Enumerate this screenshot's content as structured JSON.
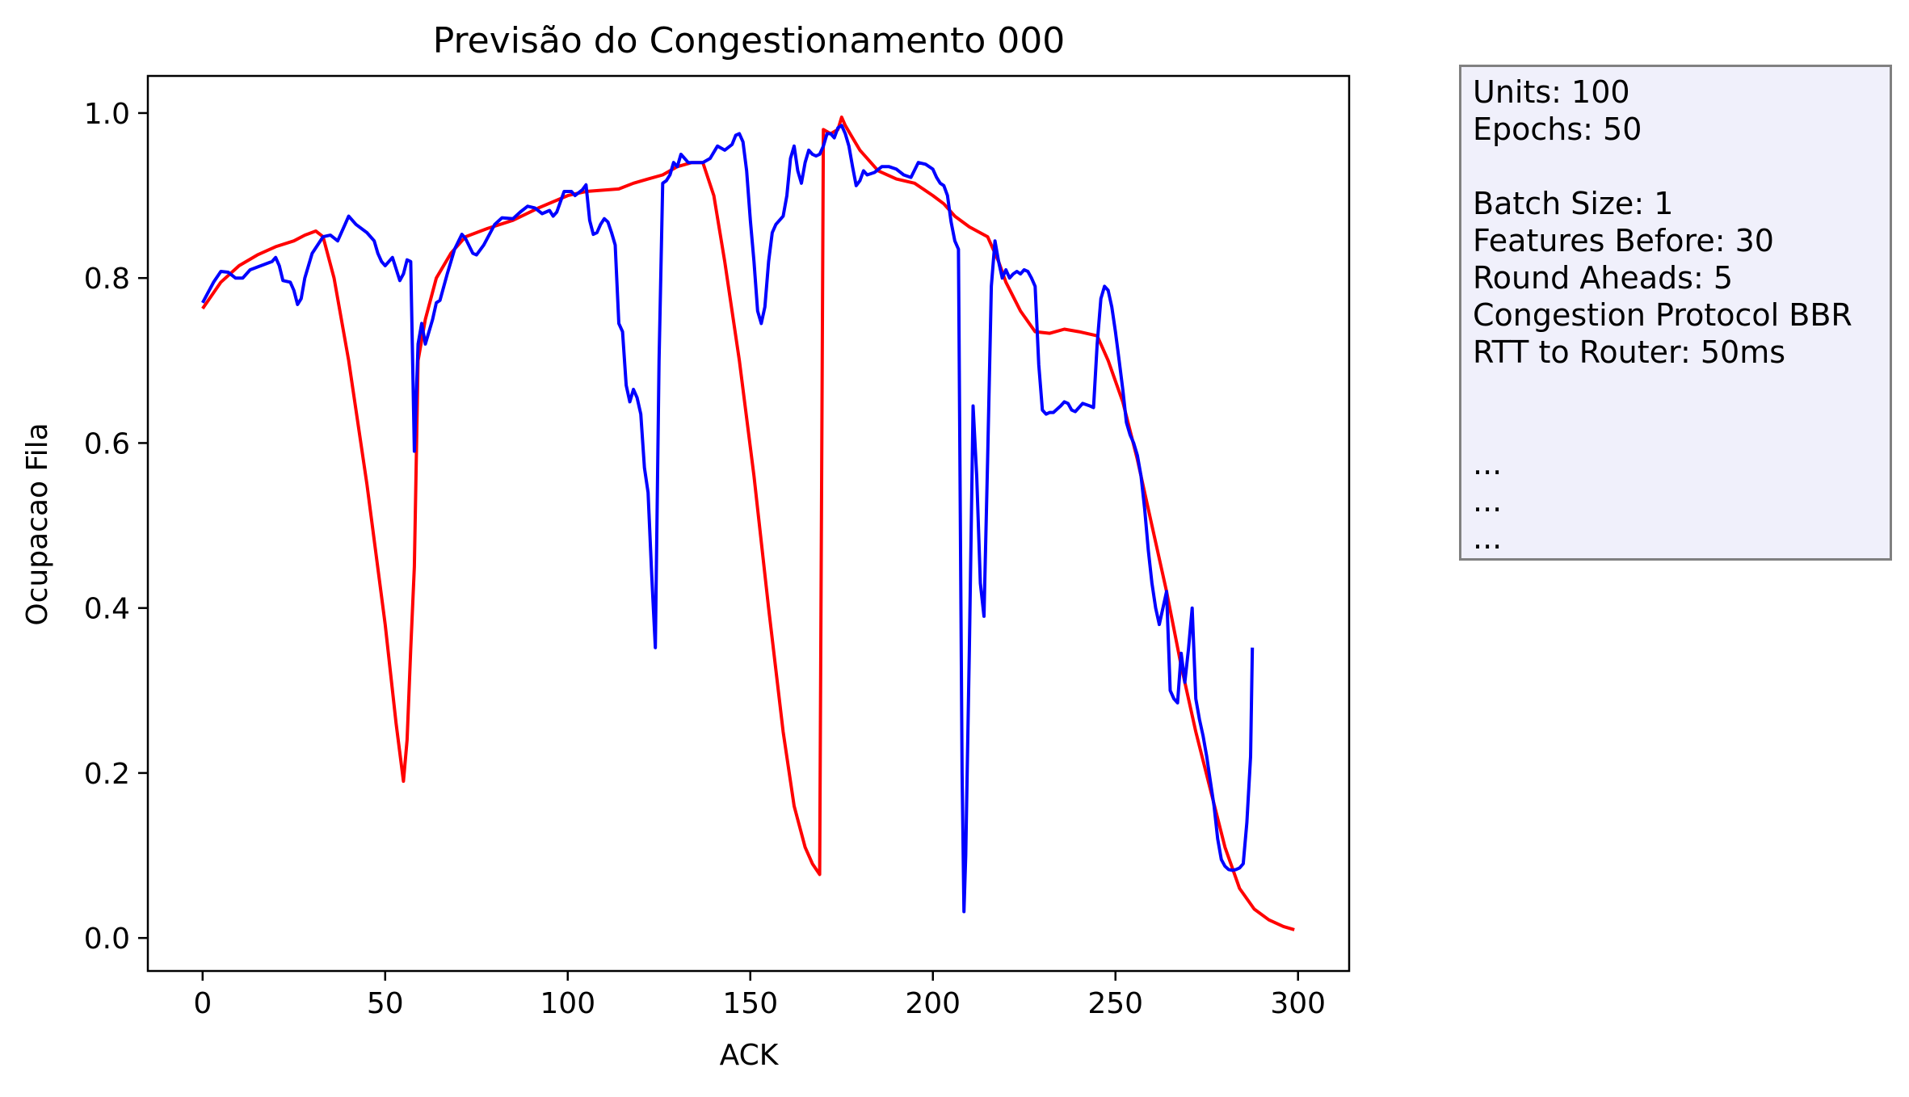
{
  "chart_data": {
    "type": "line",
    "title": "Previsão do Congestionamento 000",
    "xlabel": "ACK",
    "ylabel": "Ocupacao Fila",
    "xlim": [
      -15,
      314
    ],
    "ylim": [
      -0.04,
      1.045
    ],
    "x_ticks": [
      0,
      50,
      100,
      150,
      200,
      250,
      300
    ],
    "x_tick_labels": [
      "0",
      "50",
      "100",
      "150",
      "200",
      "250",
      "300"
    ],
    "y_ticks": [
      0.0,
      0.2,
      0.4,
      0.6,
      0.8,
      1.0
    ],
    "y_tick_labels": [
      "0.0",
      "0.2",
      "0.4",
      "0.6",
      "0.8",
      "1.0"
    ],
    "grid": false,
    "series": [
      {
        "color": "#ff0000",
        "points": [
          [
            0,
            0.763
          ],
          [
            5,
            0.795
          ],
          [
            10,
            0.815
          ],
          [
            15,
            0.828
          ],
          [
            20,
            0.838
          ],
          [
            25,
            0.845
          ],
          [
            28,
            0.852
          ],
          [
            31,
            0.857
          ],
          [
            33,
            0.85
          ],
          [
            36,
            0.8
          ],
          [
            40,
            0.7
          ],
          [
            45,
            0.55
          ],
          [
            50,
            0.38
          ],
          [
            53,
            0.26
          ],
          [
            55,
            0.19
          ],
          [
            56,
            0.24
          ],
          [
            57,
            0.35
          ],
          [
            58,
            0.45
          ],
          [
            59,
            0.7
          ],
          [
            61,
            0.75
          ],
          [
            64,
            0.8
          ],
          [
            68,
            0.83
          ],
          [
            72,
            0.85
          ],
          [
            78,
            0.86
          ],
          [
            85,
            0.87
          ],
          [
            92,
            0.885
          ],
          [
            100,
            0.9
          ],
          [
            105,
            0.905
          ],
          [
            114,
            0.908
          ],
          [
            118,
            0.915
          ],
          [
            122,
            0.92
          ],
          [
            126,
            0.925
          ],
          [
            130,
            0.935
          ],
          [
            134,
            0.94
          ],
          [
            137,
            0.94
          ],
          [
            140,
            0.9
          ],
          [
            143,
            0.82
          ],
          [
            147,
            0.7
          ],
          [
            151,
            0.56
          ],
          [
            155,
            0.4
          ],
          [
            159,
            0.25
          ],
          [
            162,
            0.16
          ],
          [
            165,
            0.11
          ],
          [
            167,
            0.09
          ],
          [
            169,
            0.077
          ],
          [
            170,
            0.98
          ],
          [
            172,
            0.975
          ],
          [
            174,
            0.98
          ],
          [
            175,
            0.995
          ],
          [
            176,
            0.985
          ],
          [
            178,
            0.97
          ],
          [
            180,
            0.955
          ],
          [
            182,
            0.945
          ],
          [
            185,
            0.93
          ],
          [
            190,
            0.92
          ],
          [
            195,
            0.915
          ],
          [
            200,
            0.9
          ],
          [
            203,
            0.89
          ],
          [
            206,
            0.875
          ],
          [
            210,
            0.862
          ],
          [
            215,
            0.85
          ],
          [
            218,
            0.82
          ],
          [
            220,
            0.795
          ],
          [
            224,
            0.76
          ],
          [
            228,
            0.735
          ],
          [
            232,
            0.733
          ],
          [
            236,
            0.738
          ],
          [
            240,
            0.735
          ],
          [
            245,
            0.73
          ],
          [
            248,
            0.7
          ],
          [
            252,
            0.65
          ],
          [
            256,
            0.58
          ],
          [
            260,
            0.5
          ],
          [
            264,
            0.42
          ],
          [
            268,
            0.33
          ],
          [
            272,
            0.25
          ],
          [
            276,
            0.18
          ],
          [
            280,
            0.11
          ],
          [
            284,
            0.06
          ],
          [
            288,
            0.035
          ],
          [
            292,
            0.022
          ],
          [
            296,
            0.014
          ],
          [
            299,
            0.01
          ]
        ]
      },
      {
        "color": "#0000ff",
        "points": [
          [
            0,
            0.77
          ],
          [
            3,
            0.795
          ],
          [
            5,
            0.808
          ],
          [
            7,
            0.807
          ],
          [
            9,
            0.8
          ],
          [
            11,
            0.8
          ],
          [
            13,
            0.81
          ],
          [
            16,
            0.815
          ],
          [
            19,
            0.82
          ],
          [
            20,
            0.825
          ],
          [
            21,
            0.815
          ],
          [
            22,
            0.797
          ],
          [
            24,
            0.795
          ],
          [
            25,
            0.785
          ],
          [
            26,
            0.768
          ],
          [
            27,
            0.775
          ],
          [
            28,
            0.8
          ],
          [
            30,
            0.83
          ],
          [
            33,
            0.85
          ],
          [
            35,
            0.852
          ],
          [
            37,
            0.845
          ],
          [
            39,
            0.865
          ],
          [
            40,
            0.875
          ],
          [
            42,
            0.865
          ],
          [
            45,
            0.855
          ],
          [
            47,
            0.845
          ],
          [
            48,
            0.83
          ],
          [
            49,
            0.82
          ],
          [
            50,
            0.815
          ],
          [
            52,
            0.825
          ],
          [
            54,
            0.797
          ],
          [
            55,
            0.805
          ],
          [
            56,
            0.822
          ],
          [
            57,
            0.82
          ],
          [
            58,
            0.59
          ],
          [
            59,
            0.72
          ],
          [
            60,
            0.745
          ],
          [
            61,
            0.72
          ],
          [
            63,
            0.75
          ],
          [
            64,
            0.77
          ],
          [
            65,
            0.773
          ],
          [
            67,
            0.805
          ],
          [
            69,
            0.835
          ],
          [
            71,
            0.853
          ],
          [
            72,
            0.848
          ],
          [
            74,
            0.83
          ],
          [
            75,
            0.828
          ],
          [
            77,
            0.84
          ],
          [
            80,
            0.865
          ],
          [
            82,
            0.873
          ],
          [
            85,
            0.872
          ],
          [
            87,
            0.88
          ],
          [
            89,
            0.887
          ],
          [
            91,
            0.885
          ],
          [
            93,
            0.878
          ],
          [
            95,
            0.882
          ],
          [
            96,
            0.875
          ],
          [
            97,
            0.88
          ],
          [
            99,
            0.905
          ],
          [
            101,
            0.905
          ],
          [
            102,
            0.9
          ],
          [
            104,
            0.907
          ],
          [
            105,
            0.913
          ],
          [
            106,
            0.87
          ],
          [
            107,
            0.853
          ],
          [
            108,
            0.855
          ],
          [
            109,
            0.865
          ],
          [
            110,
            0.872
          ],
          [
            111,
            0.868
          ],
          [
            112,
            0.855
          ],
          [
            113,
            0.84
          ],
          [
            114,
            0.745
          ],
          [
            115,
            0.735
          ],
          [
            116,
            0.67
          ],
          [
            117,
            0.65
          ],
          [
            118,
            0.665
          ],
          [
            119,
            0.655
          ],
          [
            120,
            0.635
          ],
          [
            121,
            0.57
          ],
          [
            122,
            0.54
          ],
          [
            123,
            0.44
          ],
          [
            124,
            0.352
          ],
          [
            125,
            0.7
          ],
          [
            126,
            0.915
          ],
          [
            127,
            0.918
          ],
          [
            128,
            0.925
          ],
          [
            129,
            0.94
          ],
          [
            130,
            0.935
          ],
          [
            131,
            0.95
          ],
          [
            132,
            0.945
          ],
          [
            133,
            0.94
          ],
          [
            135,
            0.94
          ],
          [
            137,
            0.94
          ],
          [
            139,
            0.945
          ],
          [
            141,
            0.96
          ],
          [
            143,
            0.955
          ],
          [
            145,
            0.962
          ],
          [
            146,
            0.973
          ],
          [
            147,
            0.975
          ],
          [
            148,
            0.965
          ],
          [
            149,
            0.93
          ],
          [
            150,
            0.87
          ],
          [
            151,
            0.82
          ],
          [
            152,
            0.76
          ],
          [
            153,
            0.745
          ],
          [
            154,
            0.765
          ],
          [
            155,
            0.82
          ],
          [
            156,
            0.855
          ],
          [
            157,
            0.865
          ],
          [
            158,
            0.87
          ],
          [
            159,
            0.875
          ],
          [
            160,
            0.9
          ],
          [
            161,
            0.945
          ],
          [
            162,
            0.96
          ],
          [
            163,
            0.93
          ],
          [
            164,
            0.915
          ],
          [
            165,
            0.94
          ],
          [
            166,
            0.955
          ],
          [
            167,
            0.95
          ],
          [
            168,
            0.948
          ],
          [
            169,
            0.95
          ],
          [
            170,
            0.96
          ],
          [
            171,
            0.975
          ],
          [
            172,
            0.975
          ],
          [
            173,
            0.97
          ],
          [
            174,
            0.982
          ],
          [
            175,
            0.985
          ],
          [
            176,
            0.975
          ],
          [
            177,
            0.96
          ],
          [
            178,
            0.935
          ],
          [
            179,
            0.912
          ],
          [
            180,
            0.918
          ],
          [
            181,
            0.93
          ],
          [
            182,
            0.925
          ],
          [
            184,
            0.928
          ],
          [
            186,
            0.935
          ],
          [
            188,
            0.935
          ],
          [
            190,
            0.932
          ],
          [
            192,
            0.925
          ],
          [
            194,
            0.922
          ],
          [
            196,
            0.94
          ],
          [
            198,
            0.938
          ],
          [
            200,
            0.932
          ],
          [
            201,
            0.922
          ],
          [
            202,
            0.915
          ],
          [
            203,
            0.912
          ],
          [
            204,
            0.9
          ],
          [
            205,
            0.868
          ],
          [
            206,
            0.845
          ],
          [
            207,
            0.835
          ],
          [
            208,
            0.2
          ],
          [
            208.5,
            0.032
          ],
          [
            209,
            0.1
          ],
          [
            210,
            0.35
          ],
          [
            211,
            0.645
          ],
          [
            212,
            0.56
          ],
          [
            213,
            0.43
          ],
          [
            214,
            0.39
          ],
          [
            215,
            0.58
          ],
          [
            216,
            0.79
          ],
          [
            217,
            0.845
          ],
          [
            218,
            0.82
          ],
          [
            219,
            0.8
          ],
          [
            220,
            0.81
          ],
          [
            221,
            0.8
          ],
          [
            222,
            0.805
          ],
          [
            223,
            0.808
          ],
          [
            224,
            0.805
          ],
          [
            225,
            0.81
          ],
          [
            226,
            0.808
          ],
          [
            227,
            0.8
          ],
          [
            228,
            0.79
          ],
          [
            229,
            0.695
          ],
          [
            230,
            0.64
          ],
          [
            231,
            0.635
          ],
          [
            232,
            0.637
          ],
          [
            233,
            0.637
          ],
          [
            235,
            0.645
          ],
          [
            236,
            0.65
          ],
          [
            237,
            0.648
          ],
          [
            238,
            0.64
          ],
          [
            239,
            0.638
          ],
          [
            241,
            0.648
          ],
          [
            243,
            0.645
          ],
          [
            244,
            0.643
          ],
          [
            245,
            0.72
          ],
          [
            246,
            0.775
          ],
          [
            247,
            0.79
          ],
          [
            248,
            0.785
          ],
          [
            249,
            0.765
          ],
          [
            250,
            0.735
          ],
          [
            251,
            0.7
          ],
          [
            252,
            0.665
          ],
          [
            253,
            0.625
          ],
          [
            254,
            0.61
          ],
          [
            255,
            0.6
          ],
          [
            256,
            0.585
          ],
          [
            257,
            0.56
          ],
          [
            258,
            0.52
          ],
          [
            259,
            0.47
          ],
          [
            260,
            0.43
          ],
          [
            261,
            0.4
          ],
          [
            262,
            0.38
          ],
          [
            263,
            0.4
          ],
          [
            264,
            0.42
          ],
          [
            265,
            0.3
          ],
          [
            266,
            0.29
          ],
          [
            267,
            0.285
          ],
          [
            268,
            0.345
          ],
          [
            269,
            0.31
          ],
          [
            270,
            0.35
          ],
          [
            271,
            0.4
          ],
          [
            272,
            0.29
          ],
          [
            273,
            0.265
          ],
          [
            274,
            0.245
          ],
          [
            275,
            0.22
          ],
          [
            276,
            0.19
          ],
          [
            277,
            0.16
          ],
          [
            278,
            0.12
          ],
          [
            279,
            0.095
          ],
          [
            280,
            0.087
          ],
          [
            281,
            0.083
          ],
          [
            282,
            0.082
          ],
          [
            283,
            0.083
          ],
          [
            284,
            0.085
          ],
          [
            285,
            0.09
          ],
          [
            286,
            0.14
          ],
          [
            287,
            0.22
          ],
          [
            287.5,
            0.352
          ]
        ]
      }
    ]
  },
  "info_box": {
    "lines": [
      "Units: 100",
      "Epochs: 50",
      "",
      "Batch Size: 1",
      "Features Before: 30",
      "Round Aheads: 5",
      "Congestion Protocol BBR",
      "RTT to Router: 50ms",
      "",
      "",
      "...",
      "...",
      "..."
    ]
  }
}
